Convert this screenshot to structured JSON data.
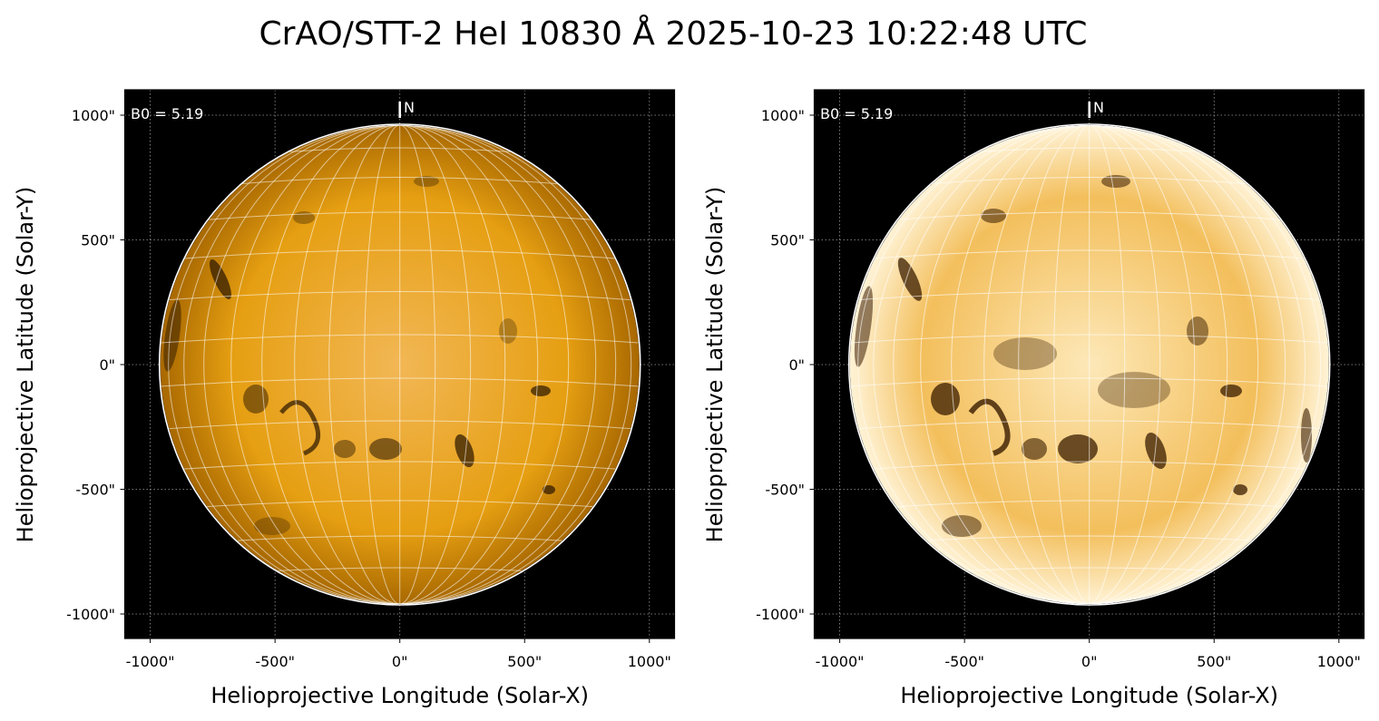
{
  "figure": {
    "title": "CrAO/STT-2 HeI 10830 Å 2025-10-23 10:22:48 UTC"
  },
  "panels": [
    {
      "id": "left",
      "xlabel": "Helioprojective Longitude (Solar-X)",
      "ylabel": "Helioprojective Latitude (Solar-Y)",
      "b0_label": "B0 = 5.19",
      "north_label": "N",
      "xticks": [
        "-1000\"",
        "-500\"",
        "0\"",
        "500\"",
        "1000\""
      ],
      "yticks": [
        "1000\"",
        "500\"",
        "0\"",
        "-500\"",
        "-1000\""
      ],
      "disk_colors": {
        "center": "#f2b755",
        "mid": "#e69f12",
        "limb": "#a86800"
      },
      "contrast": "normal"
    },
    {
      "id": "right",
      "xlabel": "Helioprojective Longitude (Solar-X)",
      "ylabel": "Helioprojective Latitude (Solar-Y)",
      "b0_label": "B0 = 5.19",
      "north_label": "N",
      "xticks": [
        "-1000\"",
        "-500\"",
        "0\"",
        "500\"",
        "1000\""
      ],
      "yticks": [
        "1000\"",
        "500\"",
        "0\"",
        "-500\"",
        "-1000\""
      ],
      "disk_colors": {
        "center": "#fde8b8",
        "mid": "#f3bf5c",
        "limb": "#fff3d6"
      },
      "contrast": "enhanced"
    }
  ]
}
